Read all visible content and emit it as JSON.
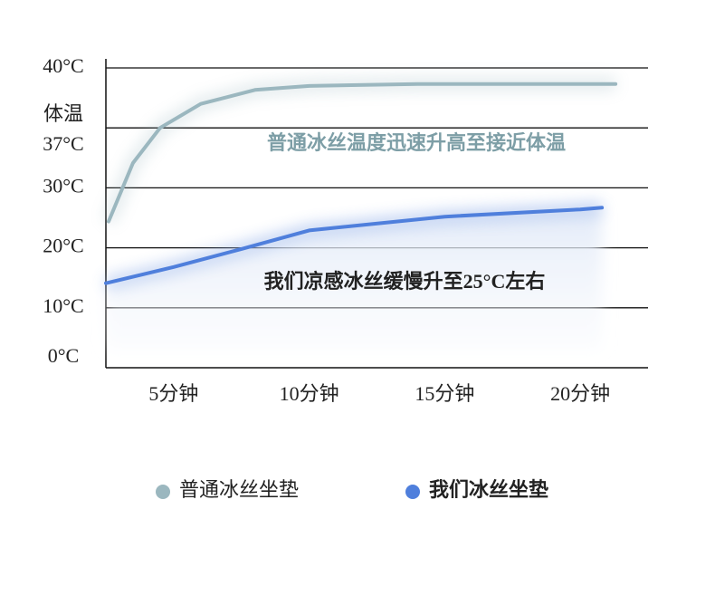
{
  "chart_data": {
    "type": "line",
    "x": [
      2.6,
      3.5,
      4.5,
      6,
      8,
      10,
      14,
      20,
      21.3
    ],
    "xlim": [
      2.5,
      22.5
    ],
    "xticks": [
      {
        "value": 5,
        "label": "5分钟"
      },
      {
        "value": 10,
        "label": "10分钟"
      },
      {
        "value": 15,
        "label": "15分钟"
      },
      {
        "value": 20,
        "label": "20分钟"
      }
    ],
    "ylim": [
      0,
      40
    ],
    "yticks": [
      {
        "value": 0,
        "label": "0°C"
      },
      {
        "value": 10,
        "label": "10°C"
      },
      {
        "value": 20,
        "label": "20°C"
      },
      {
        "value": 30,
        "label": "30°C"
      },
      {
        "value": 37,
        "label": "37°C"
      },
      {
        "value": 40,
        "label": "40°C"
      }
    ],
    "body_temp_label": "体温",
    "grid": true,
    "series": [
      {
        "name": "普通冰丝坐垫",
        "color": "#9bb7bf",
        "annotation": "普通冰丝温度迅速升高至接近体温",
        "x": [
          2.6,
          3.5,
          4.5,
          6,
          8,
          10,
          14,
          20,
          21.3
        ],
        "values": [
          24.4,
          32.9,
          37,
          38.2,
          38.9,
          39.1,
          39.2,
          39.2,
          39.2
        ]
      },
      {
        "name": "我们冰丝坐垫",
        "color": "#4f7fdc",
        "annotation": "我们凉感冰丝缓慢升至25°C左右",
        "x": [
          2.5,
          5,
          7.5,
          10,
          15,
          20,
          20.8
        ],
        "values": [
          14.1,
          16.8,
          19.8,
          22.9,
          25.2,
          26.4,
          26.7
        ]
      }
    ]
  }
}
